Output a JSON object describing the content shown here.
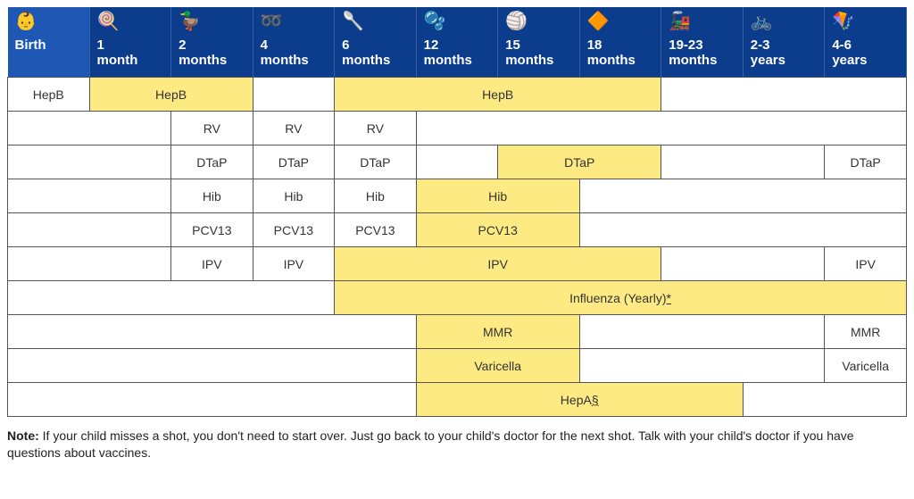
{
  "colors": {
    "header_bg": "#0c3c8c",
    "header_bg_first": "#1f57b4",
    "header_text": "#ffffff",
    "highlight_bg": "#fdea82",
    "cell_bg": "#ffffff",
    "border": "#555555",
    "body_text": "#333333"
  },
  "columns": [
    {
      "label": "Birth",
      "icon": "stroller-icon",
      "glyph": "👶"
    },
    {
      "label": "1\nmonth",
      "icon": "rattle-icon",
      "glyph": "🍭"
    },
    {
      "label": "2\nmonths",
      "icon": "duck-icon",
      "glyph": "🦆"
    },
    {
      "label": "4\nmonths",
      "icon": "rings-icon",
      "glyph": "➿"
    },
    {
      "label": "6\nmonths",
      "icon": "bib-icon",
      "glyph": "🥄"
    },
    {
      "label": "12\nmonths",
      "icon": "bubbles-icon",
      "glyph": "🫧"
    },
    {
      "label": "15\nmonths",
      "icon": "ball-icon",
      "glyph": "🏐"
    },
    {
      "label": "18\nmonths",
      "icon": "blocks-icon",
      "glyph": "🔶"
    },
    {
      "label": "19-23\nmonths",
      "icon": "train-icon",
      "glyph": "🚂"
    },
    {
      "label": "2-3\nyears",
      "icon": "bike-icon",
      "glyph": "🚲"
    },
    {
      "label": "4-6\nyears",
      "icon": "kite-icon",
      "glyph": "🪁"
    }
  ],
  "rows": [
    [
      {
        "span": 1,
        "label": "HepB",
        "hl": false
      },
      {
        "span": 2,
        "label": "HepB",
        "hl": true
      },
      {
        "span": 1,
        "label": "",
        "hl": false
      },
      {
        "span": 4,
        "label": "HepB",
        "hl": true
      },
      {
        "span": 3,
        "label": "",
        "hl": false
      }
    ],
    [
      {
        "span": 2,
        "label": "",
        "hl": false
      },
      {
        "span": 1,
        "label": "RV",
        "hl": false
      },
      {
        "span": 1,
        "label": "RV",
        "hl": false
      },
      {
        "span": 1,
        "label": "RV",
        "hl": false
      },
      {
        "span": 6,
        "label": "",
        "hl": false
      }
    ],
    [
      {
        "span": 2,
        "label": "",
        "hl": false
      },
      {
        "span": 1,
        "label": "DTaP",
        "hl": false
      },
      {
        "span": 1,
        "label": "DTaP",
        "hl": false
      },
      {
        "span": 1,
        "label": "DTaP",
        "hl": false
      },
      {
        "span": 1,
        "label": "",
        "hl": false
      },
      {
        "span": 2,
        "label": "DTaP",
        "hl": true
      },
      {
        "span": 2,
        "label": "",
        "hl": false
      },
      {
        "span": 1,
        "label": "DTaP",
        "hl": false
      }
    ],
    [
      {
        "span": 2,
        "label": "",
        "hl": false
      },
      {
        "span": 1,
        "label": "Hib",
        "hl": false
      },
      {
        "span": 1,
        "label": "Hib",
        "hl": false
      },
      {
        "span": 1,
        "label": "Hib",
        "hl": false
      },
      {
        "span": 2,
        "label": "Hib",
        "hl": true
      },
      {
        "span": 4,
        "label": "",
        "hl": false
      }
    ],
    [
      {
        "span": 2,
        "label": "",
        "hl": false
      },
      {
        "span": 1,
        "label": "PCV13",
        "hl": false
      },
      {
        "span": 1,
        "label": "PCV13",
        "hl": false
      },
      {
        "span": 1,
        "label": "PCV13",
        "hl": false
      },
      {
        "span": 2,
        "label": "PCV13",
        "hl": true
      },
      {
        "span": 4,
        "label": "",
        "hl": false
      }
    ],
    [
      {
        "span": 2,
        "label": "",
        "hl": false
      },
      {
        "span": 1,
        "label": "IPV",
        "hl": false
      },
      {
        "span": 1,
        "label": "IPV",
        "hl": false
      },
      {
        "span": 4,
        "label": "IPV",
        "hl": true
      },
      {
        "span": 2,
        "label": "",
        "hl": false
      },
      {
        "span": 1,
        "label": "IPV",
        "hl": false
      }
    ],
    [
      {
        "span": 4,
        "label": "",
        "hl": false
      },
      {
        "span": 7,
        "label": "Influenza (Yearly)",
        "hl": true,
        "footnote": "*"
      }
    ],
    [
      {
        "span": 5,
        "label": "",
        "hl": false
      },
      {
        "span": 2,
        "label": "MMR",
        "hl": true
      },
      {
        "span": 3,
        "label": "",
        "hl": false
      },
      {
        "span": 1,
        "label": "MMR",
        "hl": false
      }
    ],
    [
      {
        "span": 5,
        "label": "",
        "hl": false
      },
      {
        "span": 2,
        "label": "Varicella",
        "hl": true
      },
      {
        "span": 3,
        "label": "",
        "hl": false
      },
      {
        "span": 1,
        "label": "Varicella",
        "hl": false
      }
    ],
    [
      {
        "span": 5,
        "label": "",
        "hl": false
      },
      {
        "span": 4,
        "label": "HepA",
        "hl": true,
        "footnote": "§"
      },
      {
        "span": 2,
        "label": "",
        "hl": false
      }
    ]
  ],
  "note": {
    "label": "Note:",
    "text": "If your child misses a shot, you don't need to start over. Just go back to your child's doctor for the next shot. Talk with your child's doctor if you have questions about vaccines."
  }
}
